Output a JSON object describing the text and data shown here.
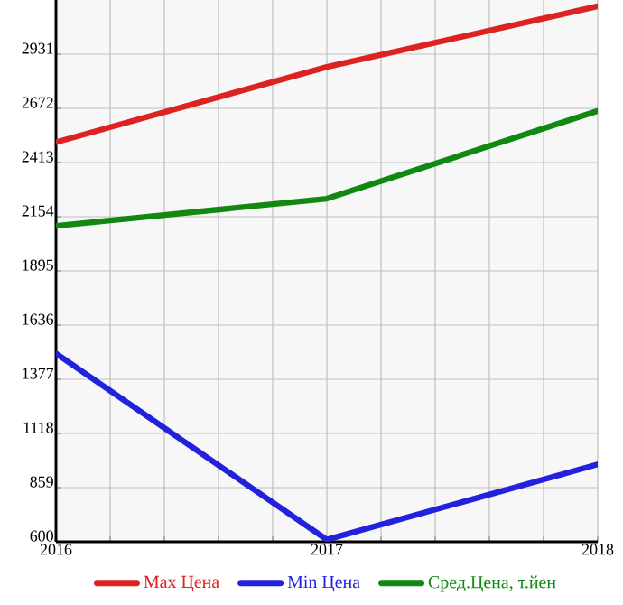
{
  "chart_data": {
    "type": "line",
    "x": [
      2016,
      2017,
      2018
    ],
    "series": [
      {
        "name": "Max Цена",
        "color": "#dd2222",
        "values": [
          2510,
          2870,
          3160
        ]
      },
      {
        "name": "Min Цена",
        "color": "#2222dd",
        "values": [
          1500,
          610,
          970
        ]
      },
      {
        "name": "Сред.Цена, т.йен",
        "color": "#118811",
        "values": [
          2110,
          2240,
          2660
        ]
      }
    ],
    "xlim": [
      2016,
      2018
    ],
    "xticks": [
      2016,
      {
        "value": 2016.2,
        "label": null
      },
      {
        "value": 2016.4,
        "label": null
      },
      {
        "value": 2016.6,
        "label": null
      },
      {
        "value": 2016.8,
        "label": null
      },
      2017,
      {
        "value": 2017.2,
        "label": null
      },
      {
        "value": 2017.4,
        "label": null
      },
      {
        "value": 2017.6,
        "label": null
      },
      {
        "value": 2017.8,
        "label": null
      },
      2018
    ],
    "ylim": [
      600,
      3190
    ],
    "yticks": [
      600,
      859,
      1118,
      1377,
      1636,
      1895,
      2154,
      2413,
      2672,
      2931
    ],
    "grid": true,
    "legend": "bottom",
    "marker": "none",
    "line_style": "solid"
  }
}
